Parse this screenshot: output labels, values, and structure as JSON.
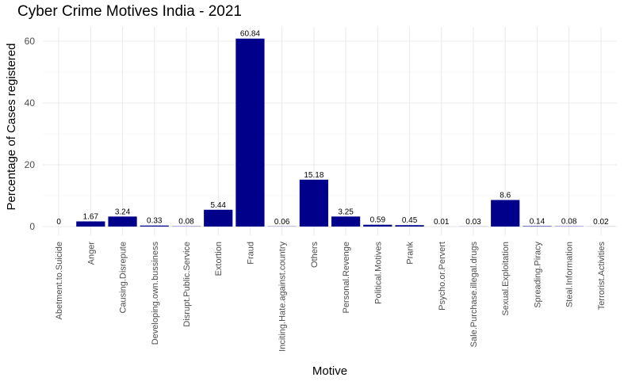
{
  "chart_data": {
    "type": "bar",
    "title": "Cyber Crime Motives India - 2021",
    "xlabel": "Motive",
    "ylabel": "Percentage of Cases registered",
    "ylim": [
      0,
      64
    ],
    "yticks": [
      0,
      20,
      40,
      60
    ],
    "grid": true,
    "bar_color": "#00008B",
    "categories": [
      "Abetment.to.Suicide",
      "Anger",
      "Causing.Disrepute",
      "Developing.own.bussiness",
      "Disrupt.Public.Service",
      "Extortion",
      "Fraud",
      "Inciting.Hate.against.country",
      "Others",
      "Personal.Revenge",
      "Political.Motives",
      "Prank",
      "Psycho.or.Pervert",
      "Sale.Purchase.illegal.drugs",
      "Sexual.Exploitation",
      "Spreading.Piracy",
      "Steal.Information",
      "Terrorist.Activities"
    ],
    "values": [
      0,
      1.67,
      3.24,
      0.33,
      0.08,
      5.44,
      60.84,
      0.06,
      15.18,
      3.25,
      0.59,
      0.45,
      0.01,
      0.03,
      8.6,
      0.14,
      0.08,
      0.02
    ],
    "value_labels": [
      "0",
      "1.67",
      "3.24",
      "0.33",
      "0.08",
      "5.44",
      "60.84",
      "0.06",
      "15.18",
      "3.25",
      "0.59",
      "0.45",
      "0.01",
      "0.03",
      "8.6",
      "0.14",
      "0.08",
      "0.02"
    ]
  }
}
